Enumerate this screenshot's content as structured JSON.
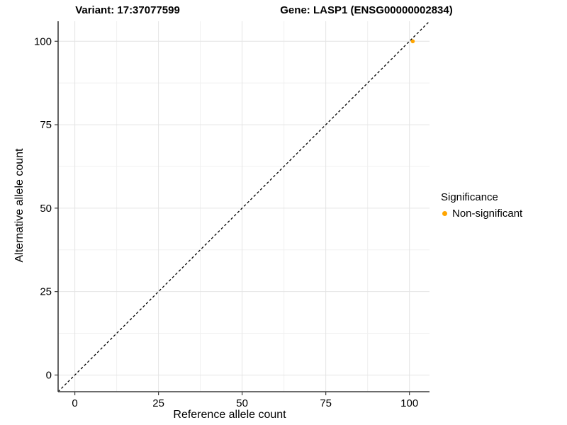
{
  "chart_data": {
    "type": "scatter",
    "titles": {
      "left": "Variant: 17:37077599",
      "right": "Gene: LASP1 (ENSG00000002834)"
    },
    "xlabel": "Reference allele count",
    "ylabel": "Alternative allele count",
    "xlim": [
      -5,
      106
    ],
    "ylim": [
      -5,
      106
    ],
    "x_ticks": [
      0,
      25,
      50,
      75,
      100
    ],
    "y_ticks": [
      0,
      25,
      50,
      75,
      100
    ],
    "x_minor_ticks": [
      12.5,
      37.5,
      62.5,
      87.5
    ],
    "y_minor_ticks": [
      12.5,
      37.5,
      62.5,
      87.5
    ],
    "grid": true,
    "legend": {
      "title": "Significance",
      "position": "right"
    },
    "reference_line": {
      "kind": "identity",
      "slope": 1,
      "intercept": 0,
      "style": "dashed",
      "color": "#000000"
    },
    "series": [
      {
        "name": "Non-significant",
        "color": "#FFA500",
        "points": [
          {
            "x": 101,
            "y": 100
          }
        ]
      }
    ]
  },
  "style_colors": {
    "major_grid": "#E4E4E4",
    "minor_grid": "#F0F0F0",
    "axis": "#3C3C3C",
    "tick_label": "#000000"
  }
}
